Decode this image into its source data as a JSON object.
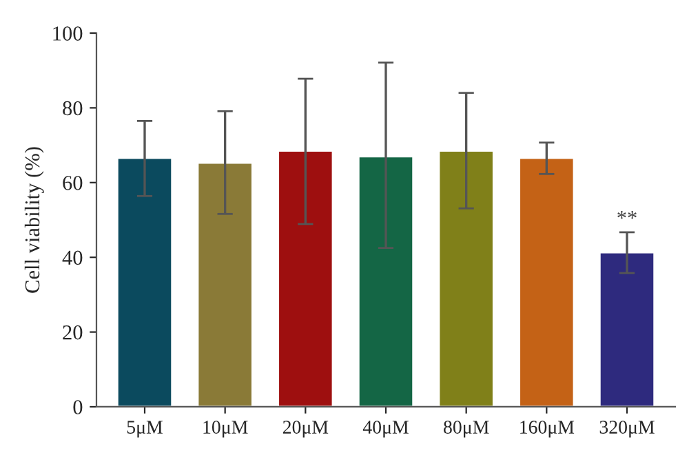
{
  "chart_data": {
    "type": "bar",
    "ylabel": "Cell viability (%)",
    "categories": [
      "5μM",
      "10μM",
      "20μM",
      "40μM",
      "80μM",
      "160μM",
      "320μM"
    ],
    "values": [
      66.6,
      65.3,
      68.5,
      67.0,
      68.5,
      66.6,
      41.3
    ],
    "colors": [
      "#0b4a5e",
      "#8a7a37",
      "#9e0f0f",
      "#146645",
      "#808019",
      "#c46216",
      "#2e2a7e"
    ],
    "errors": [
      [
        56.4,
        76.5
      ],
      [
        51.6,
        79.1
      ],
      [
        48.9,
        87.8
      ],
      [
        42.5,
        92.1
      ],
      [
        53.1,
        84.0
      ],
      [
        62.3,
        70.7
      ],
      [
        35.8,
        46.7
      ]
    ],
    "ylim": [
      0,
      100
    ],
    "yticks": [
      0,
      20,
      40,
      60,
      80,
      100
    ],
    "grid": false,
    "annotations": [
      {
        "text": "**",
        "x": "320μM",
        "y": 47.5
      }
    ]
  }
}
